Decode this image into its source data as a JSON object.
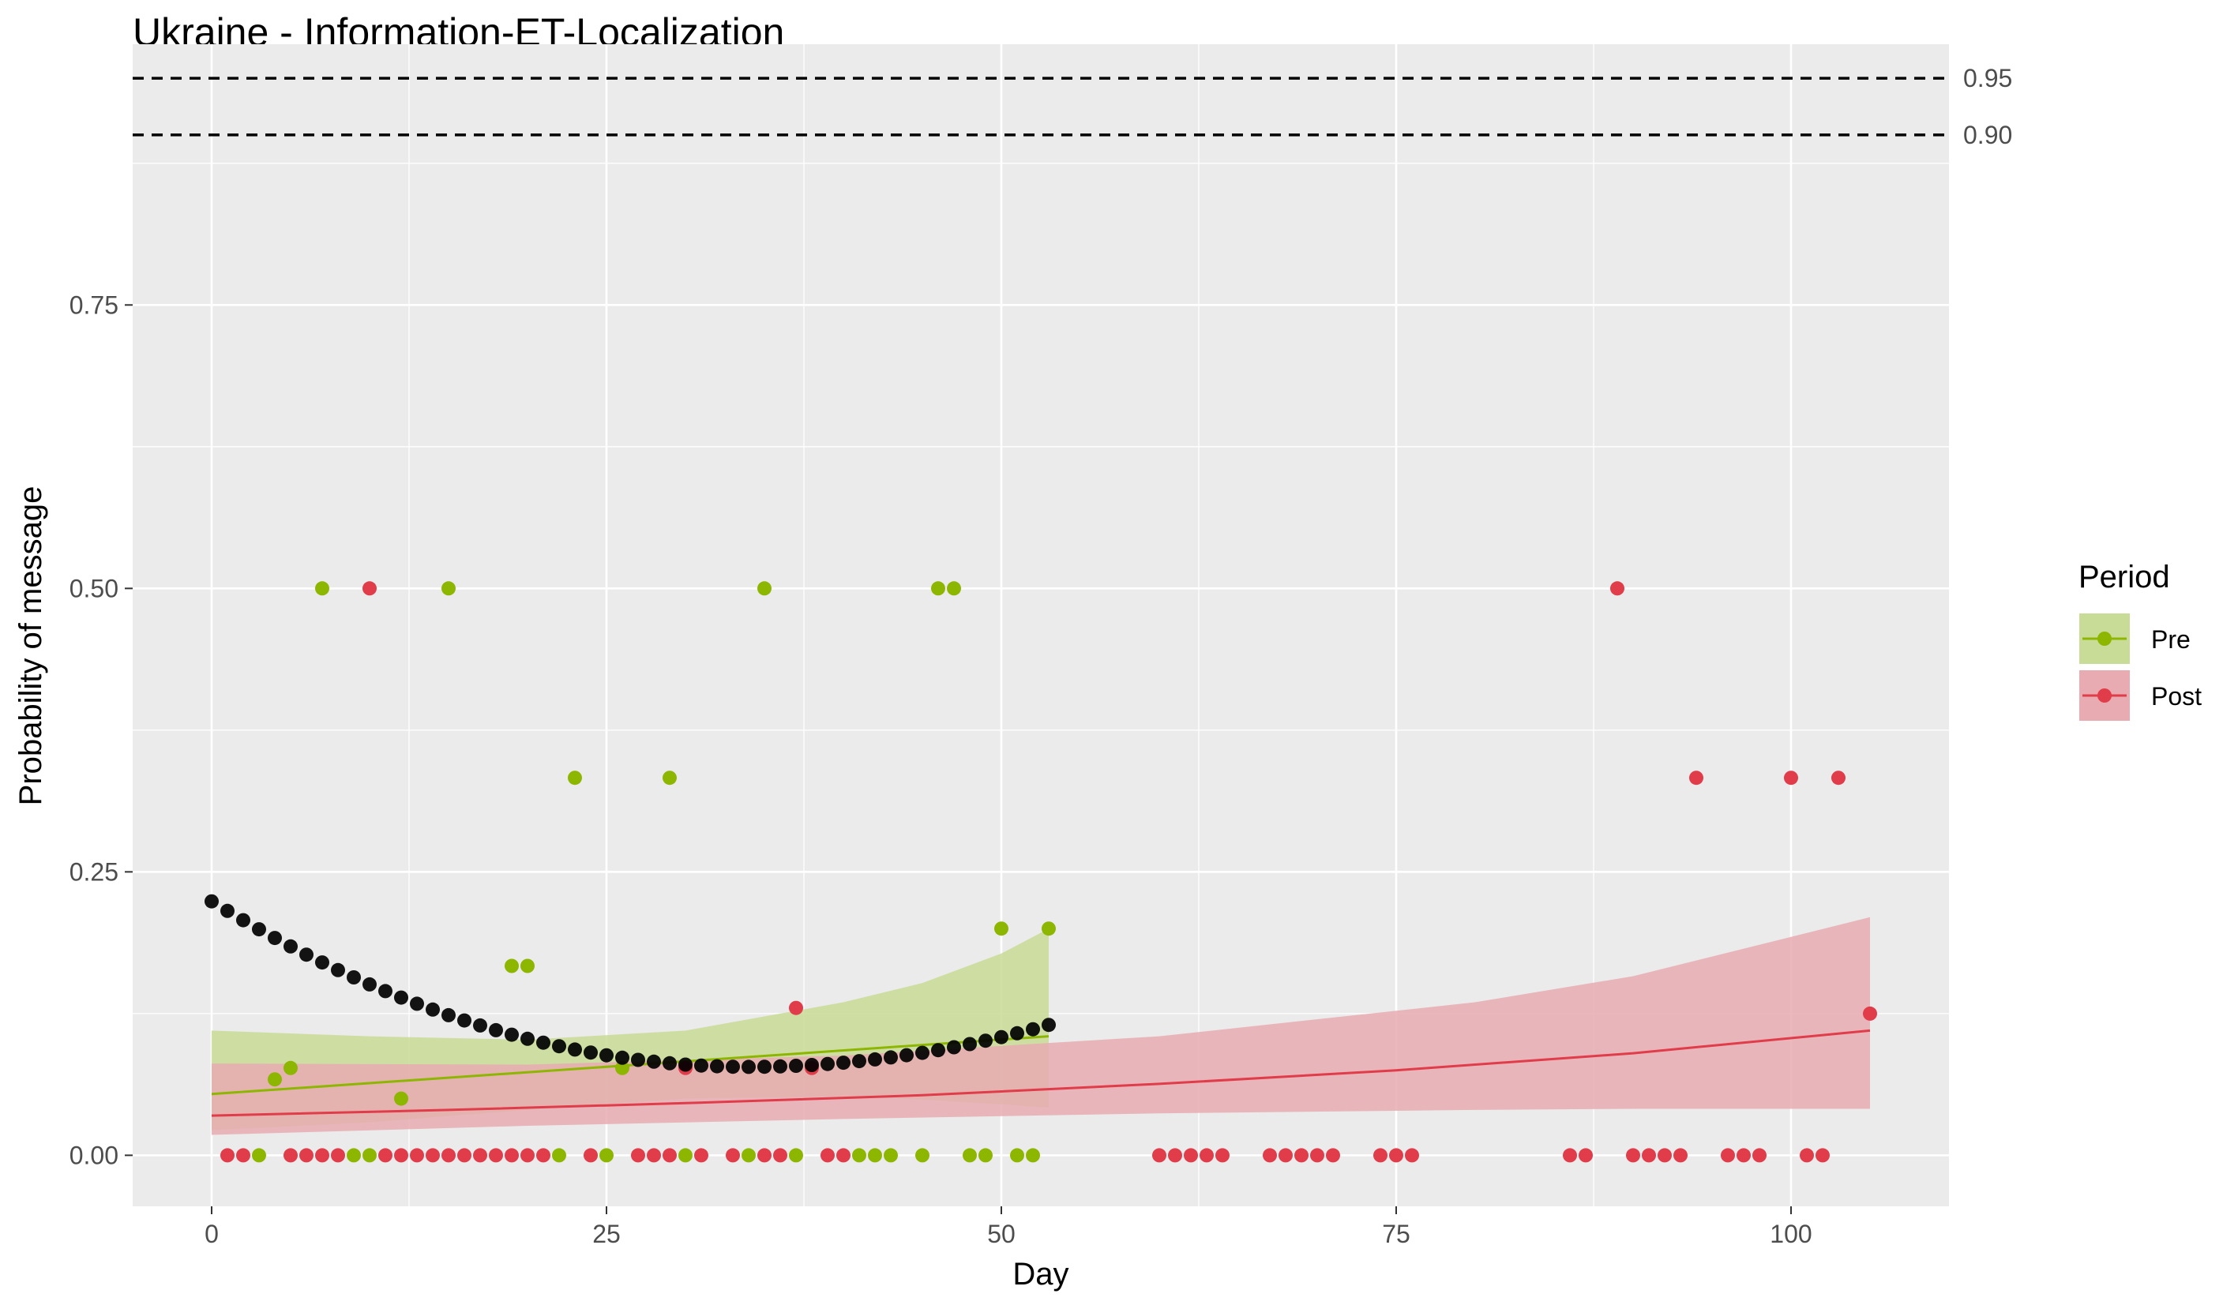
{
  "chart_data": {
    "type": "scatter",
    "title": "Ukraine - Information-ET-Localization",
    "xlabel": "Day",
    "ylabel": "Probability of message",
    "xlim": [
      -5,
      110
    ],
    "ylim": [
      -0.045,
      0.98
    ],
    "x_ticks": [
      0,
      25,
      50,
      75,
      100
    ],
    "y_ticks": [
      0.0,
      0.25,
      0.5,
      0.75
    ],
    "y_tick_labels": [
      "0.00",
      "0.25",
      "0.50",
      "0.75"
    ],
    "grid": true,
    "legend": {
      "title": "Period",
      "position": "right",
      "entries": [
        {
          "label": "Pre",
          "color": "#8db600",
          "fill": "#c9dc97"
        },
        {
          "label": "Post",
          "color": "#e03c4a",
          "fill": "#e8abb1"
        }
      ]
    },
    "reference_lines": [
      {
        "y": 0.95,
        "label": "0.95",
        "style": "dashed"
      },
      {
        "y": 0.9,
        "label": "0.90",
        "style": "dashed"
      }
    ],
    "series": [
      {
        "name": "Pre",
        "color": "#8db600",
        "band_color": "#c9dc97",
        "points": [
          [
            3,
            0
          ],
          [
            4,
            0.067
          ],
          [
            5,
            0.077
          ],
          [
            7,
            0.5
          ],
          [
            9,
            0
          ],
          [
            10,
            0
          ],
          [
            12,
            0.05
          ],
          [
            15,
            0.5
          ],
          [
            19,
            0.167
          ],
          [
            20,
            0.167
          ],
          [
            22,
            0
          ],
          [
            23,
            0.333
          ],
          [
            25,
            0
          ],
          [
            26,
            0.077
          ],
          [
            29,
            0.333
          ],
          [
            30,
            0
          ],
          [
            34,
            0
          ],
          [
            35,
            0.5
          ],
          [
            37,
            0
          ],
          [
            41,
            0
          ],
          [
            42,
            0
          ],
          [
            43,
            0
          ],
          [
            45,
            0
          ],
          [
            46,
            0.5
          ],
          [
            47,
            0.5
          ],
          [
            48,
            0
          ],
          [
            49,
            0
          ],
          [
            50,
            0.2
          ],
          [
            51,
            0
          ],
          [
            52,
            0
          ],
          [
            53,
            0.2
          ]
        ],
        "fit": {
          "x": [
            0,
            53
          ],
          "y": [
            0.054,
            0.105
          ]
        },
        "band": {
          "x": [
            0,
            10,
            20,
            30,
            40,
            45,
            50,
            53
          ],
          "lower": [
            0.022,
            0.029,
            0.04,
            0.05,
            0.052,
            0.049,
            0.045,
            0.042
          ],
          "upper": [
            0.11,
            0.105,
            0.102,
            0.11,
            0.135,
            0.152,
            0.178,
            0.2
          ]
        }
      },
      {
        "name": "Post",
        "color": "#e03c4a",
        "band_color": "#e8abb1",
        "points": [
          [
            1,
            0
          ],
          [
            2,
            0
          ],
          [
            5,
            0
          ],
          [
            6,
            0
          ],
          [
            7,
            0
          ],
          [
            8,
            0
          ],
          [
            10,
            0.5
          ],
          [
            11,
            0
          ],
          [
            12,
            0
          ],
          [
            13,
            0
          ],
          [
            14,
            0
          ],
          [
            15,
            0
          ],
          [
            16,
            0
          ],
          [
            17,
            0
          ],
          [
            18,
            0
          ],
          [
            19,
            0
          ],
          [
            20,
            0
          ],
          [
            21,
            0
          ],
          [
            24,
            0
          ],
          [
            27,
            0
          ],
          [
            28,
            0
          ],
          [
            29,
            0
          ],
          [
            30,
            0.077
          ],
          [
            31,
            0
          ],
          [
            33,
            0
          ],
          [
            35,
            0
          ],
          [
            36,
            0
          ],
          [
            37,
            0.13
          ],
          [
            38,
            0.077
          ],
          [
            39,
            0
          ],
          [
            40,
            0
          ],
          [
            60,
            0
          ],
          [
            61,
            0
          ],
          [
            62,
            0
          ],
          [
            63,
            0
          ],
          [
            64,
            0
          ],
          [
            67,
            0
          ],
          [
            68,
            0
          ],
          [
            69,
            0
          ],
          [
            70,
            0
          ],
          [
            71,
            0
          ],
          [
            74,
            0
          ],
          [
            75,
            0
          ],
          [
            76,
            0
          ],
          [
            86,
            0
          ],
          [
            87,
            0
          ],
          [
            89,
            0.5
          ],
          [
            90,
            0
          ],
          [
            91,
            0
          ],
          [
            92,
            0
          ],
          [
            93,
            0
          ],
          [
            94,
            0.333
          ],
          [
            96,
            0
          ],
          [
            97,
            0
          ],
          [
            98,
            0
          ],
          [
            100,
            0.333
          ],
          [
            101,
            0
          ],
          [
            102,
            0
          ],
          [
            103,
            0.333
          ],
          [
            105,
            0.125
          ]
        ],
        "fit": {
          "x": [
            0,
            15,
            30,
            45,
            60,
            75,
            90,
            105
          ],
          "y": [
            0.035,
            0.04,
            0.046,
            0.053,
            0.063,
            0.075,
            0.09,
            0.11
          ]
        },
        "band": {
          "x": [
            0,
            20,
            40,
            60,
            80,
            90,
            105
          ],
          "lower": [
            0.018,
            0.026,
            0.032,
            0.037,
            0.04,
            0.041,
            0.041
          ],
          "upper": [
            0.081,
            0.08,
            0.088,
            0.105,
            0.135,
            0.158,
            0.21
          ]
        }
      }
    ],
    "black_trend": {
      "color": "#000000",
      "x_start": 0,
      "x_end": 53,
      "y_start": 0.224,
      "y_min": 0.078,
      "x_min": 34,
      "y_end": 0.115
    }
  }
}
